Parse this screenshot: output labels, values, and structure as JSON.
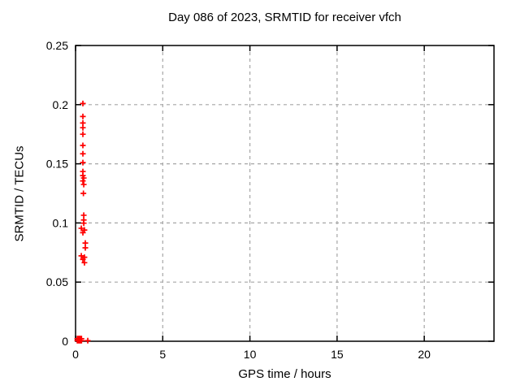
{
  "chart_data": {
    "type": "scatter",
    "title": "Day 086 of 2023, SRMTID for receiver vfch",
    "xlabel": "GPS time / hours",
    "ylabel": "SRMTID / TECUs",
    "xlim": [
      0,
      24
    ],
    "ylim": [
      0,
      0.25
    ],
    "xticks": [
      [
        0,
        "0"
      ],
      [
        5,
        "5"
      ],
      [
        10,
        "10"
      ],
      [
        15,
        "15"
      ],
      [
        20,
        "20"
      ]
    ],
    "yticks": [
      [
        0,
        "0"
      ],
      [
        0.05,
        "0.05"
      ],
      [
        0.1,
        "0.1"
      ],
      [
        0.15,
        "0.15"
      ],
      [
        0.2,
        "0.2"
      ],
      [
        0.25,
        "0.25"
      ]
    ],
    "grid": true,
    "legend": "none",
    "marker": "plus",
    "colors": {
      "marker": "#ff0000",
      "grid": "#a6a6a6",
      "axis": "#000000",
      "background": "#ffffff"
    },
    "series": [
      {
        "name": "srmtid-points",
        "points": [
          [
            0.42,
            0.201
          ],
          [
            0.42,
            0.19
          ],
          [
            0.42,
            0.1845
          ],
          [
            0.42,
            0.1805
          ],
          [
            0.42,
            0.175
          ],
          [
            0.42,
            0.1655
          ],
          [
            0.42,
            0.1585
          ],
          [
            0.42,
            0.151
          ],
          [
            0.42,
            0.1435
          ],
          [
            0.42,
            0.14
          ],
          [
            0.47,
            0.138
          ],
          [
            0.42,
            0.1355
          ],
          [
            0.47,
            0.1325
          ],
          [
            0.45,
            0.125
          ],
          [
            0.47,
            0.1065
          ],
          [
            0.47,
            0.1025
          ],
          [
            0.47,
            0.0998
          ],
          [
            0.33,
            0.0955
          ],
          [
            0.51,
            0.094
          ],
          [
            0.42,
            0.0918
          ],
          [
            0.56,
            0.083
          ],
          [
            0.56,
            0.079
          ],
          [
            0.33,
            0.0722
          ],
          [
            0.51,
            0.071
          ],
          [
            0.42,
            0.0692
          ],
          [
            0.51,
            0.0664
          ],
          [
            0.1,
            0.0005
          ],
          [
            0.16,
            0.0005
          ],
          [
            0.22,
            0.0005
          ],
          [
            0.28,
            0.0005
          ],
          [
            0.34,
            0.0005
          ],
          [
            0.1,
            0.0022
          ],
          [
            0.16,
            0.0022
          ],
          [
            0.22,
            0.0022
          ],
          [
            0.28,
            0.0022
          ],
          [
            0.34,
            0.0022
          ],
          [
            0.7,
            0.0005
          ]
        ]
      }
    ]
  }
}
